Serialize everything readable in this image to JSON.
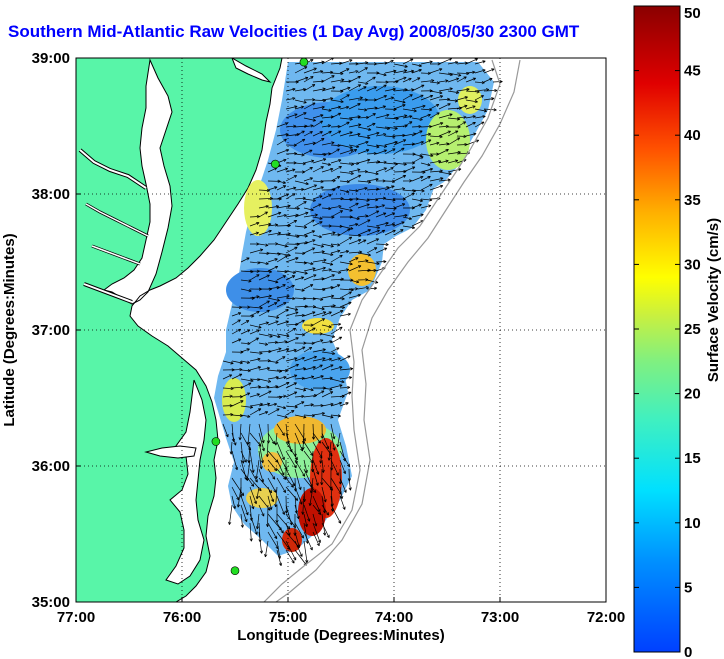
{
  "title": "Southern Mid-Atlantic Raw Velocities (1 Day Avg) 2008/05/30 2300 GMT",
  "x_axis": {
    "label": "Longitude (Degrees:Minutes)",
    "ticks": [
      "77:00",
      "76:00",
      "75:00",
      "74:00",
      "73:00",
      "72:00"
    ]
  },
  "y_axis": {
    "label": "Latitude (Degrees:Minutes)",
    "ticks": [
      "39:00",
      "38:00",
      "37:00",
      "36:00",
      "35:00"
    ]
  },
  "colorbar": {
    "label": "Surface Velocity (cm/s)",
    "ticks": [
      "0",
      "5",
      "10",
      "15",
      "20",
      "25",
      "30",
      "35",
      "40",
      "45",
      "50"
    ],
    "min": 0,
    "max": 50
  },
  "colors": {
    "land": "#58f5a8",
    "title": "#0000ff",
    "station": "#22dd22"
  },
  "extent": {
    "lon": [
      -77,
      -72
    ],
    "lat": [
      35,
      39
    ]
  },
  "stations": [
    {
      "lon": -74.85,
      "lat": 38.97
    },
    {
      "lon": -75.12,
      "lat": 38.22
    },
    {
      "lon": -75.68,
      "lat": 36.18
    },
    {
      "lon": -75.5,
      "lat": 35.23
    }
  ]
}
